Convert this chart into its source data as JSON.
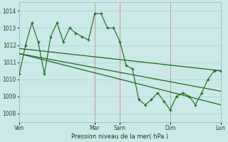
{
  "bg_color": "#cce8e8",
  "grid_color": "#b0d8d8",
  "line_color": "#1a6b1a",
  "vline_color": "#cc9999",
  "xlabel": "Pression niveau de la mer( hPa )",
  "ylim": [
    1007.5,
    1014.5
  ],
  "yticks": [
    1008,
    1009,
    1010,
    1011,
    1012,
    1013,
    1014
  ],
  "xlim": [
    0,
    192
  ],
  "xtick_labels": [
    "Ven",
    "Mar",
    "Sam",
    "Dim",
    "Lun"
  ],
  "xtick_positions": [
    0,
    72,
    96,
    144,
    192
  ],
  "vlines_x": [
    72,
    96,
    144,
    192
  ],
  "series1": {
    "x": [
      0,
      6,
      12,
      18,
      24,
      30,
      36,
      42,
      48,
      54,
      60,
      66,
      72,
      78,
      84,
      90,
      96,
      102,
      108,
      114,
      120,
      126,
      132,
      138,
      144,
      150,
      156,
      162,
      168,
      174,
      180,
      186,
      192
    ],
    "y": [
      1010.3,
      1012.0,
      1013.3,
      1012.2,
      1010.3,
      1012.5,
      1013.3,
      1012.2,
      1013.0,
      1012.7,
      1012.5,
      1012.3,
      1013.85,
      1013.85,
      1013.0,
      1013.0,
      1012.2,
      1010.8,
      1010.6,
      1008.8,
      1008.5,
      1008.8,
      1009.2,
      1008.7,
      1008.2,
      1009.0,
      1009.2,
      1009.0,
      1008.5,
      1009.2,
      1010.0,
      1010.5,
      1010.5
    ]
  },
  "series2": {
    "x": [
      0,
      192
    ],
    "y": [
      1011.8,
      1010.5
    ]
  },
  "series3": {
    "x": [
      0,
      192
    ],
    "y": [
      1011.5,
      1008.5
    ]
  },
  "series4": {
    "x": [
      0,
      192
    ],
    "y": [
      1011.5,
      1009.3
    ]
  }
}
